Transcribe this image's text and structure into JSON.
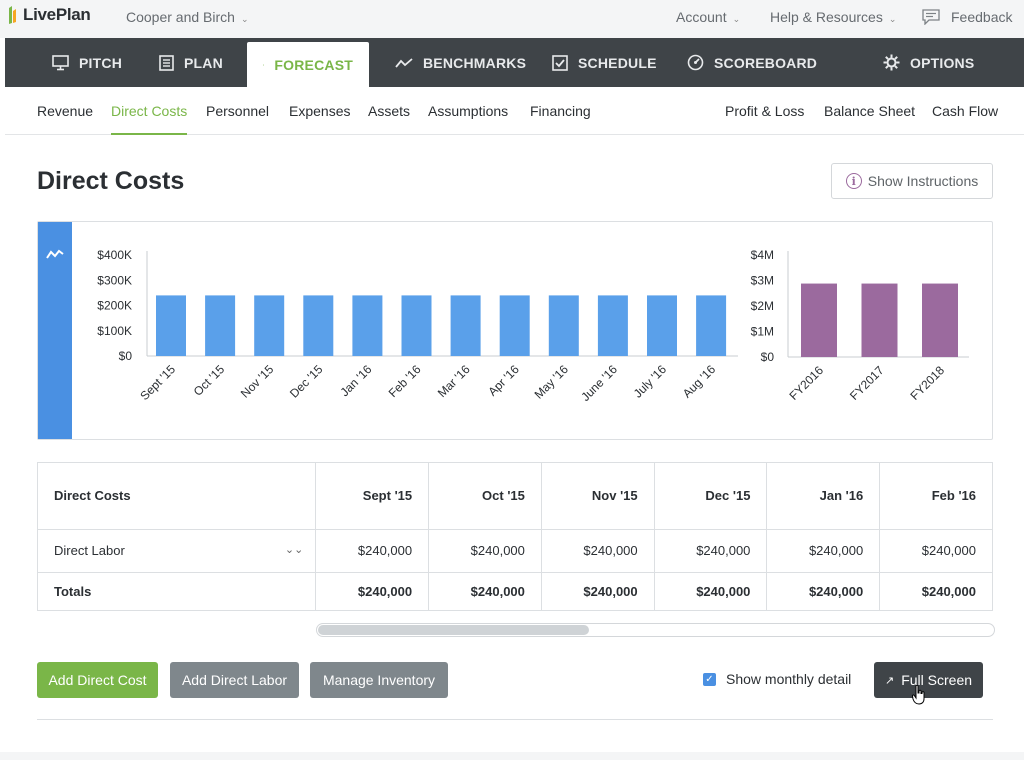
{
  "header": {
    "logo_text": "LivePlan",
    "company": "Cooper and Birch",
    "links": [
      {
        "label": "Account"
      },
      {
        "label": "Help & Resources"
      },
      {
        "label": "Feedback"
      }
    ]
  },
  "mainnav": [
    {
      "label": "PITCH",
      "icon": "monitor-icon"
    },
    {
      "label": "PLAN",
      "icon": "document-icon"
    },
    {
      "label": "FORECAST",
      "icon": "piggy-bank-icon",
      "active": true
    },
    {
      "label": "BENCHMARKS",
      "icon": "trend-line-icon"
    },
    {
      "label": "SCHEDULE",
      "icon": "checkbox-icon"
    },
    {
      "label": "SCOREBOARD",
      "icon": "dashboard-icon"
    },
    {
      "label": "OPTIONS",
      "icon": "gear-icon"
    }
  ],
  "subnav": {
    "left": [
      "Revenue",
      "Direct Costs",
      "Personnel",
      "Expenses",
      "Assets",
      "Assumptions",
      "Financing"
    ],
    "right": [
      "Profit & Loss",
      "Balance Sheet",
      "Cash Flow"
    ],
    "active": "Direct Costs"
  },
  "page": {
    "title": "Direct Costs",
    "instructions_button": "Show Instructions"
  },
  "chart_data": [
    {
      "type": "bar",
      "categories": [
        "Sept '15",
        "Oct '15",
        "Nov '15",
        "Dec '15",
        "Jan '16",
        "Feb '16",
        "Mar '16",
        "Apr '16",
        "May '16",
        "June '16",
        "July '16",
        "Aug '16"
      ],
      "values": [
        240000,
        240000,
        240000,
        240000,
        240000,
        240000,
        240000,
        240000,
        240000,
        240000,
        240000,
        240000
      ],
      "yticks": [
        "$0",
        "$100K",
        "$200K",
        "$300K",
        "$400K"
      ],
      "ylim": [
        0,
        400000
      ],
      "color": "#5aa0ea"
    },
    {
      "type": "bar",
      "categories": [
        "FY2016",
        "FY2017",
        "FY2018"
      ],
      "values": [
        2880000,
        2880000,
        2880000
      ],
      "yticks": [
        "$0",
        "$1M",
        "$2M",
        "$3M",
        "$4M"
      ],
      "ylim": [
        0,
        4000000
      ],
      "color": "#9b6a9e"
    }
  ],
  "table": {
    "header_label": "Direct Costs",
    "columns": [
      "Sept '15",
      "Oct '15",
      "Nov '15",
      "Dec '15",
      "Jan '16",
      "Feb '16"
    ],
    "rows": [
      {
        "label": "Direct Labor",
        "values": [
          "$240,000",
          "$240,000",
          "$240,000",
          "$240,000",
          "$240,000",
          "$240,000"
        ]
      }
    ],
    "totals": {
      "label": "Totals",
      "values": [
        "$240,000",
        "$240,000",
        "$240,000",
        "$240,000",
        "$240,000",
        "$240,000"
      ]
    }
  },
  "actions": {
    "add_direct_cost": "Add Direct Cost",
    "add_direct_labor": "Add Direct Labor",
    "manage_inventory": "Manage Inventory",
    "show_monthly": "Show monthly detail",
    "show_monthly_checked": true,
    "full_screen": "Full Screen"
  },
  "colors": {
    "accent_green": "#7ab648",
    "nav_dark": "#3f4448",
    "monthly_bar": "#5aa0ea",
    "annual_bar": "#9b6a9e",
    "strip_blue": "#4a90e2"
  }
}
